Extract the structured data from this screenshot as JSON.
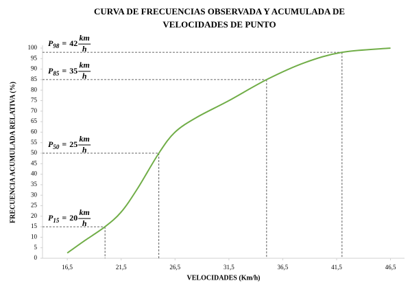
{
  "chart_data": {
    "type": "line",
    "title": [
      "CURVA DE FRECUENCIAS OBSERVADA Y ACUMULADA DE",
      "VELOCIDADES DE PUNTO"
    ],
    "x_label": "VELOCIDADES (Km/h)",
    "y_label": "FRECUENCIA ACUMULADA RELATIVA (%)",
    "x": [
      16.5,
      18,
      20,
      21.5,
      23,
      25,
      26.5,
      28.5,
      31.5,
      35,
      38.5,
      42,
      46.5
    ],
    "values": [
      2.5,
      8,
      15,
      22,
      33,
      50,
      60,
      67,
      75,
      85,
      93,
      98,
      100
    ],
    "color": "#70ad47",
    "xlim": [
      14.2,
      47.8
    ],
    "xticks": [
      {
        "value": 16.5,
        "label": "16,5"
      },
      {
        "value": 21.5,
        "label": "21,5"
      },
      {
        "value": 26.5,
        "label": "26,5"
      },
      {
        "value": 31.5,
        "label": "31,5"
      },
      {
        "value": 36.5,
        "label": "36,5"
      },
      {
        "value": 41.5,
        "label": "41,5"
      },
      {
        "value": 46.5,
        "label": "46,5"
      }
    ],
    "ylim": [
      0,
      100
    ],
    "yticks": [
      0,
      5,
      10,
      15,
      20,
      25,
      30,
      35,
      40,
      45,
      50,
      55,
      60,
      65,
      70,
      75,
      80,
      85,
      90,
      95,
      100
    ],
    "grid": false,
    "annotation_symbol": "P",
    "annotation_relation": "=",
    "annotation_unit_numerator": "km",
    "annotation_unit_denominator": "h",
    "annotations": [
      {
        "percentile": 15,
        "speed": 20
      },
      {
        "percentile": 50,
        "speed": 25
      },
      {
        "percentile": 85,
        "speed": 35
      },
      {
        "percentile": 98,
        "speed": 42
      }
    ]
  }
}
